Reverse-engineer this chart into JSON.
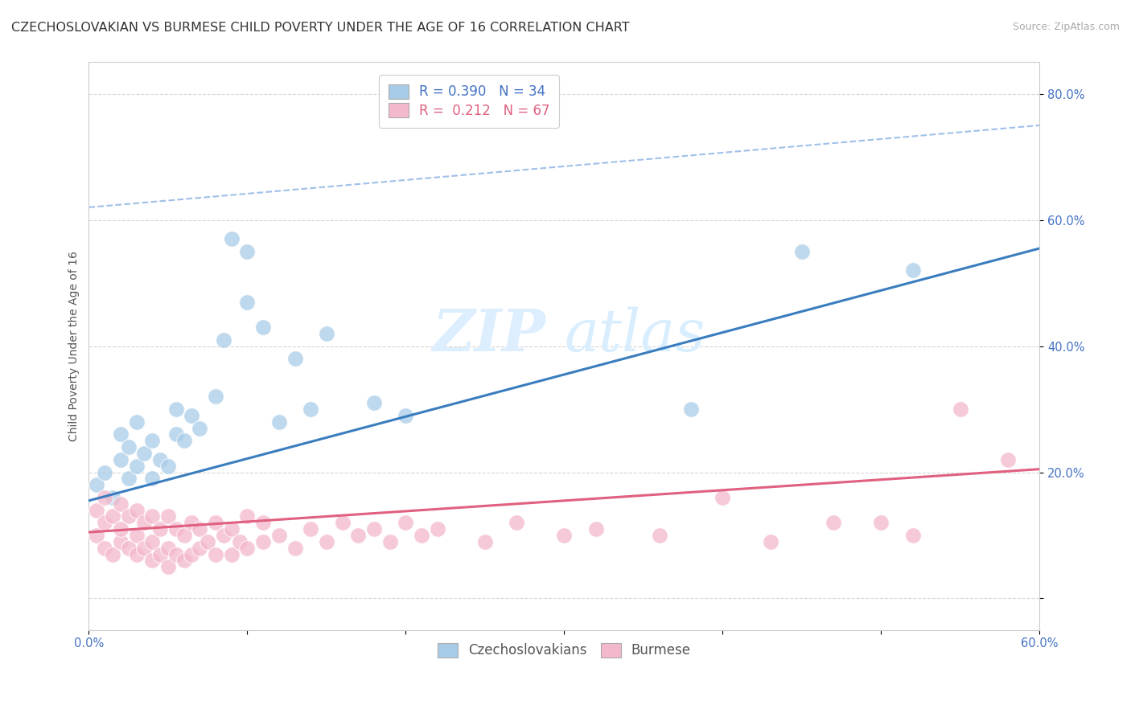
{
  "title": "CZECHOSLOVAKIAN VS BURMESE CHILD POVERTY UNDER THE AGE OF 16 CORRELATION CHART",
  "source": "Source: ZipAtlas.com",
  "ylabel": "Child Poverty Under the Age of 16",
  "xmin": 0.0,
  "xmax": 0.6,
  "ymin": -0.05,
  "ymax": 0.85,
  "czech_color": "#a8cce8",
  "burmese_color": "#f4b8cc",
  "czech_line_color": "#3a7dbf",
  "burmese_line_color": "#e06080",
  "dash_line_color": "#a0c0e8",
  "watermark_color": "#ddeeff",
  "grid_color": "#cccccc",
  "background_color": "#ffffff",
  "title_fontsize": 11.5,
  "axis_label_fontsize": 10,
  "tick_fontsize": 10.5,
  "legend_fontsize": 12,
  "czech_R": "0.390",
  "czech_N": "34",
  "burmese_R": "0.212",
  "burmese_N": "67",
  "legend_labels": [
    "Czechoslovakians",
    "Burmese"
  ],
  "czech_scatter_x": [
    0.005,
    0.01,
    0.015,
    0.02,
    0.02,
    0.025,
    0.025,
    0.03,
    0.03,
    0.035,
    0.04,
    0.04,
    0.045,
    0.05,
    0.055,
    0.055,
    0.06,
    0.065,
    0.07,
    0.08,
    0.085,
    0.09,
    0.1,
    0.1,
    0.11,
    0.12,
    0.13,
    0.14,
    0.15,
    0.18,
    0.2,
    0.38,
    0.45,
    0.52
  ],
  "czech_scatter_y": [
    0.18,
    0.2,
    0.16,
    0.22,
    0.26,
    0.19,
    0.24,
    0.21,
    0.28,
    0.23,
    0.19,
    0.25,
    0.22,
    0.21,
    0.26,
    0.3,
    0.25,
    0.29,
    0.27,
    0.32,
    0.41,
    0.57,
    0.55,
    0.47,
    0.43,
    0.28,
    0.38,
    0.3,
    0.42,
    0.31,
    0.29,
    0.3,
    0.55,
    0.52
  ],
  "burmese_scatter_x": [
    0.005,
    0.005,
    0.01,
    0.01,
    0.01,
    0.015,
    0.015,
    0.02,
    0.02,
    0.02,
    0.025,
    0.025,
    0.03,
    0.03,
    0.03,
    0.035,
    0.035,
    0.04,
    0.04,
    0.04,
    0.045,
    0.045,
    0.05,
    0.05,
    0.05,
    0.055,
    0.055,
    0.06,
    0.06,
    0.065,
    0.065,
    0.07,
    0.07,
    0.075,
    0.08,
    0.08,
    0.085,
    0.09,
    0.09,
    0.095,
    0.1,
    0.1,
    0.11,
    0.11,
    0.12,
    0.13,
    0.14,
    0.15,
    0.16,
    0.17,
    0.18,
    0.19,
    0.2,
    0.21,
    0.22,
    0.25,
    0.27,
    0.3,
    0.32,
    0.36,
    0.4,
    0.43,
    0.47,
    0.5,
    0.52,
    0.55,
    0.58
  ],
  "burmese_scatter_y": [
    0.1,
    0.14,
    0.08,
    0.12,
    0.16,
    0.07,
    0.13,
    0.09,
    0.11,
    0.15,
    0.08,
    0.13,
    0.07,
    0.1,
    0.14,
    0.08,
    0.12,
    0.06,
    0.09,
    0.13,
    0.07,
    0.11,
    0.05,
    0.08,
    0.13,
    0.07,
    0.11,
    0.06,
    0.1,
    0.07,
    0.12,
    0.08,
    0.11,
    0.09,
    0.07,
    0.12,
    0.1,
    0.07,
    0.11,
    0.09,
    0.08,
    0.13,
    0.09,
    0.12,
    0.1,
    0.08,
    0.11,
    0.09,
    0.12,
    0.1,
    0.11,
    0.09,
    0.12,
    0.1,
    0.11,
    0.09,
    0.12,
    0.1,
    0.11,
    0.1,
    0.16,
    0.09,
    0.12,
    0.12,
    0.1,
    0.3,
    0.22
  ],
  "czech_line_x0": 0.0,
  "czech_line_y0": 0.155,
  "czech_line_x1": 0.6,
  "czech_line_y1": 0.555,
  "burmese_line_x0": 0.0,
  "burmese_line_y0": 0.105,
  "burmese_line_x1": 0.6,
  "burmese_line_y1": 0.205,
  "dash_line_x0": 0.0,
  "dash_line_y0": 0.62,
  "dash_line_x1": 0.6,
  "dash_line_y1": 0.75,
  "ytick_positions": [
    0.0,
    0.2,
    0.4,
    0.6,
    0.8
  ],
  "ytick_labels": [
    "",
    "20.0%",
    "40.0%",
    "60.0%",
    "80.0%"
  ]
}
